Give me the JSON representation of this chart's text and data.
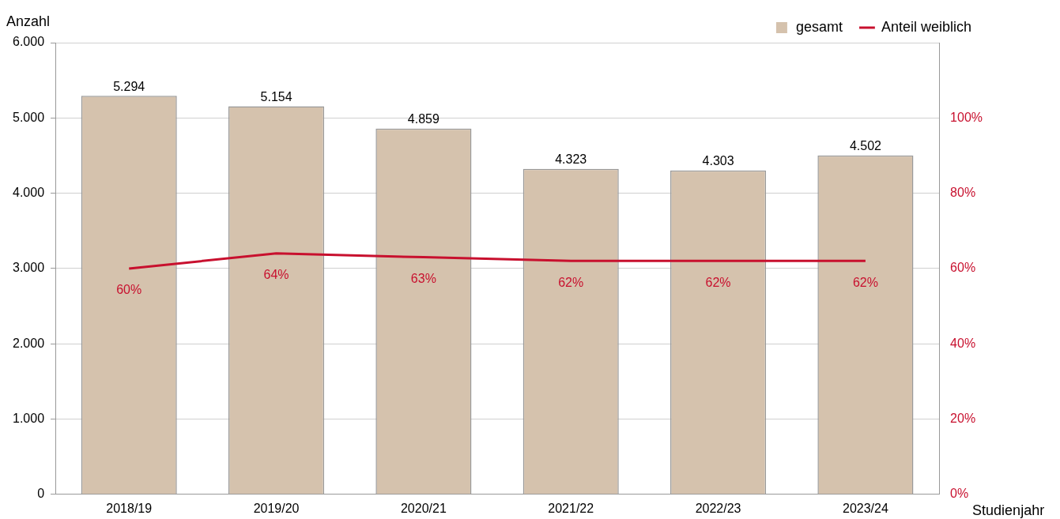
{
  "chart_data": {
    "type": "bar",
    "ylabel": "Anzahl",
    "xlabel": "Studienjahr",
    "categories": [
      "2018/19",
      "2019/20",
      "2020/21",
      "2021/22",
      "2022/23",
      "2023/24"
    ],
    "series": [
      {
        "name": "gesamt",
        "color": "#d5c2ad",
        "values": [
          5294,
          5154,
          4859,
          4323,
          4303,
          4502
        ],
        "value_labels": [
          "5.294",
          "5.154",
          "4.859",
          "4.323",
          "4.303",
          "4.502"
        ]
      },
      {
        "name": "Anteil weiblich",
        "type": "line",
        "axis": "y2",
        "color": "#c8102e",
        "values": [
          60,
          64,
          63,
          62,
          62,
          62
        ],
        "value_labels": [
          "60%",
          "64%",
          "63%",
          "62%",
          "62%",
          "62%"
        ]
      }
    ],
    "ylim": [
      0,
      6000
    ],
    "yticks": [
      {
        "value": 0,
        "label": "0"
      },
      {
        "value": 1000,
        "label": "1.000"
      },
      {
        "value": 2000,
        "label": "2.000"
      },
      {
        "value": 3000,
        "label": "3.000"
      },
      {
        "value": 4000,
        "label": "4.000"
      },
      {
        "value": 5000,
        "label": "5.000"
      },
      {
        "value": 6000,
        "label": "6.000"
      }
    ],
    "y2lim": [
      0,
      120
    ],
    "y2ticks": [
      {
        "value": 0,
        "label": "0%"
      },
      {
        "value": 20,
        "label": "20%"
      },
      {
        "value": 40,
        "label": "40%"
      },
      {
        "value": 60,
        "label": "60%"
      },
      {
        "value": 80,
        "label": "80%"
      },
      {
        "value": 100,
        "label": "100%"
      }
    ],
    "grid": "y",
    "legend": "top right",
    "line_style": "solid"
  }
}
